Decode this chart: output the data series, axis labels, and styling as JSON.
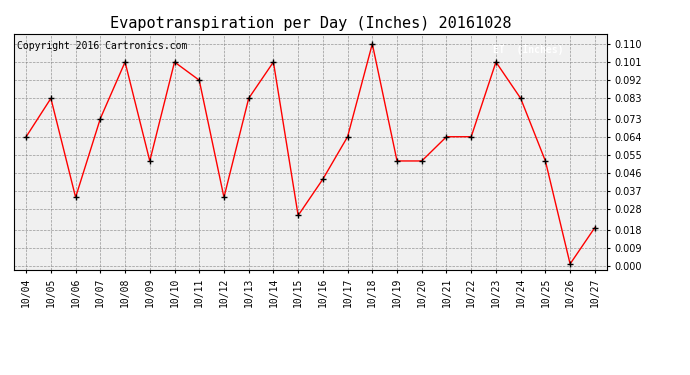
{
  "title": "Evapotranspiration per Day (Inches) 20161028",
  "copyright": "Copyright 2016 Cartronics.com",
  "legend_label": "ET  (Inches)",
  "dates": [
    "10/04",
    "10/05",
    "10/06",
    "10/07",
    "10/08",
    "10/09",
    "10/10",
    "10/11",
    "10/12",
    "10/13",
    "10/14",
    "10/15",
    "10/16",
    "10/17",
    "10/18",
    "10/19",
    "10/20",
    "10/21",
    "10/22",
    "10/23",
    "10/24",
    "10/25",
    "10/26",
    "10/27"
  ],
  "values": [
    0.064,
    0.083,
    0.034,
    0.073,
    0.101,
    0.052,
    0.101,
    0.092,
    0.034,
    0.083,
    0.101,
    0.025,
    0.043,
    0.064,
    0.11,
    0.052,
    0.052,
    0.064,
    0.064,
    0.101,
    0.083,
    0.052,
    0.001,
    0.019
  ],
  "line_color": "red",
  "marker_color": "black",
  "bg_color": "#ffffff",
  "plot_bg_color": "#f0f0f0",
  "ylim": [
    -0.002,
    0.115
  ],
  "yticks": [
    0.0,
    0.009,
    0.018,
    0.028,
    0.037,
    0.046,
    0.055,
    0.064,
    0.073,
    0.083,
    0.092,
    0.101,
    0.11
  ],
  "title_fontsize": 11,
  "copyright_fontsize": 7,
  "tick_fontsize": 7,
  "legend_bg": "red",
  "legend_text_color": "white"
}
